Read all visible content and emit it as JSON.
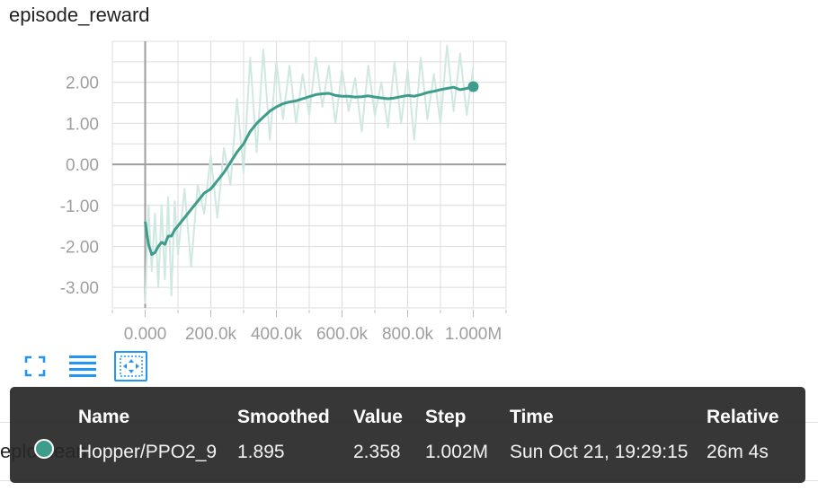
{
  "title": "episode_reward",
  "colors": {
    "series": "#3e9c8a",
    "series_raw": "#cfe8e1",
    "grid": "#dcdcdc",
    "zero_line": "#9e9e9e",
    "toolbar": "#2196f3",
    "tooltip_bg": "#282828"
  },
  "toolbar": {
    "icons": [
      "fullscreen-icon",
      "toggle-log-scale-icon",
      "fit-domain-icon"
    ]
  },
  "background_text": "eplomean",
  "tooltip": {
    "headers": {
      "name": "Name",
      "smoothed": "Smoothed",
      "value": "Value",
      "step": "Step",
      "time": "Time",
      "relative": "Relative"
    },
    "row": {
      "name": "Hopper/PPO2_9",
      "smoothed": "1.895",
      "value": "2.358",
      "step": "1.002M",
      "time": "Sun Oct 21, 19:29:15",
      "relative": "26m 4s"
    }
  },
  "chart_data": {
    "type": "line",
    "title": "episode_reward",
    "xlabel": "",
    "ylabel": "",
    "xlim": [
      -100000,
      1100000
    ],
    "ylim": [
      -3.5,
      3.0
    ],
    "grid": true,
    "x_ticks": [
      0,
      200000,
      400000,
      600000,
      800000,
      1000000
    ],
    "x_tick_labels": [
      "0.000",
      "200.0k",
      "400.0k",
      "600.0k",
      "800.0k",
      "1.000M"
    ],
    "y_ticks": [
      -3,
      -2,
      -1,
      0,
      1,
      2
    ],
    "y_tick_labels": [
      "-3.00",
      "-2.00",
      "-1.00",
      "0.00",
      "1.00",
      "2.00"
    ],
    "series": [
      {
        "name": "Hopper/PPO2_9",
        "x": [
          0,
          10000,
          20000,
          30000,
          40000,
          50000,
          60000,
          70000,
          80000,
          90000,
          100000,
          120000,
          140000,
          160000,
          180000,
          200000,
          220000,
          240000,
          260000,
          280000,
          300000,
          320000,
          340000,
          360000,
          380000,
          400000,
          420000,
          440000,
          460000,
          480000,
          500000,
          520000,
          540000,
          560000,
          580000,
          600000,
          620000,
          640000,
          660000,
          680000,
          700000,
          720000,
          740000,
          760000,
          780000,
          800000,
          820000,
          840000,
          860000,
          880000,
          900000,
          920000,
          940000,
          960000,
          980000,
          1000000
        ],
        "smoothed": [
          -1.4,
          -1.95,
          -2.2,
          -2.15,
          -2.0,
          -1.9,
          -1.95,
          -1.75,
          -1.75,
          -1.6,
          -1.5,
          -1.3,
          -1.1,
          -0.9,
          -0.7,
          -0.6,
          -0.4,
          -0.2,
          0.05,
          0.3,
          0.5,
          0.8,
          1.0,
          1.15,
          1.3,
          1.4,
          1.48,
          1.52,
          1.55,
          1.6,
          1.65,
          1.7,
          1.72,
          1.73,
          1.68,
          1.66,
          1.66,
          1.64,
          1.65,
          1.67,
          1.64,
          1.62,
          1.6,
          1.62,
          1.65,
          1.68,
          1.66,
          1.7,
          1.75,
          1.78,
          1.82,
          1.85,
          1.88,
          1.82,
          1.85,
          1.895
        ],
        "raw": [
          -3.4,
          -1.0,
          -2.6,
          -1.2,
          -3.0,
          -1.0,
          -2.8,
          -0.8,
          -3.2,
          -0.9,
          -2.2,
          -0.6,
          -2.5,
          -0.5,
          -1.2,
          0.2,
          -1.3,
          0.4,
          -0.5,
          1.6,
          -0.2,
          2.6,
          0.3,
          2.8,
          0.6,
          2.5,
          1.1,
          2.4,
          1.0,
          2.2,
          1.2,
          2.6,
          1.4,
          2.4,
          1.0,
          2.3,
          1.3,
          2.1,
          0.8,
          2.4,
          1.2,
          2.0,
          0.9,
          2.5,
          1.0,
          2.3,
          0.6,
          2.6,
          1.1,
          2.2,
          1.0,
          2.9,
          1.3,
          2.7,
          1.2,
          2.358
        ]
      }
    ]
  }
}
